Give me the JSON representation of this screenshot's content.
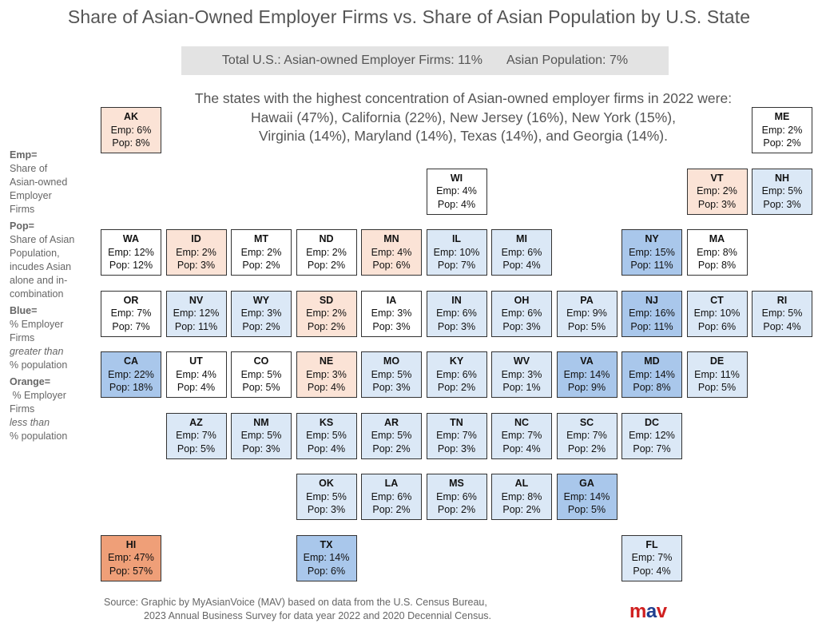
{
  "title": "Share of Asian-Owned Employer Firms vs. Share of Asian Population by U.S. State",
  "totals": {
    "firms": "Total U.S.:  Asian-owned Employer Firms: 11%",
    "population": "Asian Population: 7%"
  },
  "highlights": [
    "The states with the highest concentration of Asian-owned employer firms in 2022 were:",
    "Hawaii (47%), California (22%), New Jersey (16%), New York (15%),",
    "Virginia (14%), Maryland (14%), Texas (14%), and Georgia (14%)."
  ],
  "legend": {
    "emp_term": "Emp=",
    "emp_desc": [
      "Share of",
      "Asian-owned",
      "Employer",
      "Firms"
    ],
    "pop_term": "Pop=",
    "pop_desc": [
      "Share of Asian",
      "Population,",
      "incudes Asian",
      "alone and in-",
      "combination"
    ],
    "blue_term": "Blue=",
    "blue_desc": [
      "% Employer",
      "Firms"
    ],
    "blue_em": "greater than",
    "blue_tail": "% population",
    "orange_term": "Orange=",
    "orange_desc": [
      " % Employer",
      "Firms"
    ],
    "orange_em": "less than",
    "orange_tail": "% population"
  },
  "colors": {
    "orange_light": "#fbe3d6",
    "orange_dark": "#ef9f78",
    "blue_light": "#dbe8f6",
    "blue_medium": "#a9c7eb",
    "blue_dark": "#7ea9df",
    "neutral": "#ffffff"
  },
  "states": [
    {
      "abbr": "AK",
      "emp": "Emp: 6%",
      "pop": "Pop: 8%",
      "col": 0,
      "row": 0,
      "color": "orange_light"
    },
    {
      "abbr": "ME",
      "emp": "Emp: 2%",
      "pop": "Pop: 2%",
      "col": 10,
      "row": 0,
      "color": "neutral"
    },
    {
      "abbr": "WI",
      "emp": "Emp: 4%",
      "pop": "Pop: 4%",
      "col": 5,
      "row": 1,
      "color": "neutral"
    },
    {
      "abbr": "VT",
      "emp": "Emp: 2%",
      "pop": "Pop: 3%",
      "col": 9,
      "row": 1,
      "color": "orange_light"
    },
    {
      "abbr": "NH",
      "emp": "Emp: 5%",
      "pop": "Pop: 3%",
      "col": 10,
      "row": 1,
      "color": "blue_light"
    },
    {
      "abbr": "WA",
      "emp": "Emp: 12%",
      "pop": "Pop: 12%",
      "col": 0,
      "row": 2,
      "color": "neutral"
    },
    {
      "abbr": "ID",
      "emp": "Emp: 2%",
      "pop": "Pop: 3%",
      "col": 1,
      "row": 2,
      "color": "orange_light"
    },
    {
      "abbr": "MT",
      "emp": "Emp: 2%",
      "pop": "Pop: 2%",
      "col": 2,
      "row": 2,
      "color": "neutral"
    },
    {
      "abbr": "ND",
      "emp": "Emp: 2%",
      "pop": "Pop: 2%",
      "col": 3,
      "row": 2,
      "color": "neutral"
    },
    {
      "abbr": "MN",
      "emp": "Emp: 4%",
      "pop": "Pop: 6%",
      "col": 4,
      "row": 2,
      "color": "orange_light"
    },
    {
      "abbr": "IL",
      "emp": "Emp: 10%",
      "pop": "Pop: 7%",
      "col": 5,
      "row": 2,
      "color": "blue_light"
    },
    {
      "abbr": "MI",
      "emp": "Emp: 6%",
      "pop": "Pop: 4%",
      "col": 6,
      "row": 2,
      "color": "blue_light"
    },
    {
      "abbr": "NY",
      "emp": "Emp: 15%",
      "pop": "Pop: 11%",
      "col": 8,
      "row": 2,
      "color": "blue_medium"
    },
    {
      "abbr": "MA",
      "emp": "Emp: 8%",
      "pop": "Pop: 8%",
      "col": 9,
      "row": 2,
      "color": "neutral"
    },
    {
      "abbr": "OR",
      "emp": "Emp: 7%",
      "pop": "Pop: 7%",
      "col": 0,
      "row": 3,
      "color": "neutral"
    },
    {
      "abbr": "NV",
      "emp": "Emp: 12%",
      "pop": "Pop: 11%",
      "col": 1,
      "row": 3,
      "color": "blue_light"
    },
    {
      "abbr": "WY",
      "emp": "Emp: 3%",
      "pop": "Pop: 2%",
      "col": 2,
      "row": 3,
      "color": "blue_light"
    },
    {
      "abbr": "SD",
      "emp": "Emp: 2%",
      "pop": "Pop: 2%",
      "col": 3,
      "row": 3,
      "color": "orange_light"
    },
    {
      "abbr": "IA",
      "emp": "Emp: 3%",
      "pop": "Pop: 3%",
      "col": 4,
      "row": 3,
      "color": "neutral"
    },
    {
      "abbr": "IN",
      "emp": "Emp: 6%",
      "pop": "Pop: 3%",
      "col": 5,
      "row": 3,
      "color": "blue_light"
    },
    {
      "abbr": "OH",
      "emp": "Emp: 6%",
      "pop": "Pop: 3%",
      "col": 6,
      "row": 3,
      "color": "blue_light"
    },
    {
      "abbr": "PA",
      "emp": "Emp: 9%",
      "pop": "Pop: 5%",
      "col": 7,
      "row": 3,
      "color": "blue_light"
    },
    {
      "abbr": "NJ",
      "emp": "Emp: 16%",
      "pop": "Pop: 11%",
      "col": 8,
      "row": 3,
      "color": "blue_medium"
    },
    {
      "abbr": "CT",
      "emp": "Emp: 10%",
      "pop": "Pop: 6%",
      "col": 9,
      "row": 3,
      "color": "blue_light"
    },
    {
      "abbr": "RI",
      "emp": "Emp: 5%",
      "pop": "Pop: 4%",
      "col": 10,
      "row": 3,
      "color": "blue_light"
    },
    {
      "abbr": "CA",
      "emp": "Emp: 22%",
      "pop": "Pop: 18%",
      "col": 0,
      "row": 4,
      "color": "blue_medium"
    },
    {
      "abbr": "UT",
      "emp": "Emp: 4%",
      "pop": "Pop: 4%",
      "col": 1,
      "row": 4,
      "color": "neutral"
    },
    {
      "abbr": "CO",
      "emp": "Emp: 5%",
      "pop": "Pop: 5%",
      "col": 2,
      "row": 4,
      "color": "neutral"
    },
    {
      "abbr": "NE",
      "emp": "Emp: 3%",
      "pop": "Pop: 4%",
      "col": 3,
      "row": 4,
      "color": "orange_light"
    },
    {
      "abbr": "MO",
      "emp": "Emp: 5%",
      "pop": "Pop: 3%",
      "col": 4,
      "row": 4,
      "color": "blue_light"
    },
    {
      "abbr": "KY",
      "emp": "Emp: 6%",
      "pop": "Pop: 2%",
      "col": 5,
      "row": 4,
      "color": "blue_light"
    },
    {
      "abbr": "WV",
      "emp": "Emp: 3%",
      "pop": "Pop: 1%",
      "col": 6,
      "row": 4,
      "color": "blue_light"
    },
    {
      "abbr": "VA",
      "emp": "Emp: 14%",
      "pop": "Pop: 9%",
      "col": 7,
      "row": 4,
      "color": "blue_medium"
    },
    {
      "abbr": "MD",
      "emp": "Emp: 14%",
      "pop": "Pop: 8%",
      "col": 8,
      "row": 4,
      "color": "blue_medium"
    },
    {
      "abbr": "DE",
      "emp": "Emp: 11%",
      "pop": "Pop: 5%",
      "col": 9,
      "row": 4,
      "color": "blue_light"
    },
    {
      "abbr": "AZ",
      "emp": "Emp: 7%",
      "pop": "Pop: 5%",
      "col": 1,
      "row": 5,
      "color": "blue_light"
    },
    {
      "abbr": "NM",
      "emp": "Emp: 5%",
      "pop": "Pop: 3%",
      "col": 2,
      "row": 5,
      "color": "blue_light"
    },
    {
      "abbr": "KS",
      "emp": "Emp: 5%",
      "pop": "Pop: 4%",
      "col": 3,
      "row": 5,
      "color": "blue_light"
    },
    {
      "abbr": "AR",
      "emp": "Emp: 5%",
      "pop": "Pop: 2%",
      "col": 4,
      "row": 5,
      "color": "blue_light"
    },
    {
      "abbr": "TN",
      "emp": "Emp: 7%",
      "pop": "Pop: 3%",
      "col": 5,
      "row": 5,
      "color": "blue_light"
    },
    {
      "abbr": "NC",
      "emp": "Emp: 7%",
      "pop": "Pop: 4%",
      "col": 6,
      "row": 5,
      "color": "blue_light"
    },
    {
      "abbr": "SC",
      "emp": "Emp: 7%",
      "pop": "Pop: 2%",
      "col": 7,
      "row": 5,
      "color": "blue_light"
    },
    {
      "abbr": "DC",
      "emp": "Emp: 12%",
      "pop": "Pop: 7%",
      "col": 8,
      "row": 5,
      "color": "blue_light"
    },
    {
      "abbr": "OK",
      "emp": "Emp: 5%",
      "pop": "Pop: 3%",
      "col": 3,
      "row": 6,
      "color": "blue_light"
    },
    {
      "abbr": "LA",
      "emp": "Emp: 6%",
      "pop": "Pop: 2%",
      "col": 4,
      "row": 6,
      "color": "blue_light"
    },
    {
      "abbr": "MS",
      "emp": "Emp: 6%",
      "pop": "Pop: 2%",
      "col": 5,
      "row": 6,
      "color": "blue_light"
    },
    {
      "abbr": "AL",
      "emp": "Emp: 8%",
      "pop": "Pop: 2%",
      "col": 6,
      "row": 6,
      "color": "blue_light"
    },
    {
      "abbr": "GA",
      "emp": "Emp: 14%",
      "pop": "Pop: 5%",
      "col": 7,
      "row": 6,
      "color": "blue_medium"
    },
    {
      "abbr": "HI",
      "emp": "Emp: 47%",
      "pop": "Pop: 57%",
      "col": 0,
      "row": 7,
      "color": "orange_dark"
    },
    {
      "abbr": "TX",
      "emp": "Emp: 14%",
      "pop": "Pop: 6%",
      "col": 3,
      "row": 7,
      "color": "blue_medium"
    },
    {
      "abbr": "FL",
      "emp": "Emp: 7%",
      "pop": "Pop: 4%",
      "col": 8,
      "row": 7,
      "color": "blue_light"
    }
  ],
  "source": {
    "line1": "Source: Graphic by MyAsianVoice (MAV) based on data from the U.S. Census Bureau,",
    "line2": "2023 Annual Business Survey for data year 2022 and 2020 Decennial Census."
  },
  "logo": {
    "part1": "m",
    "part2": "a",
    "part3": "v"
  }
}
